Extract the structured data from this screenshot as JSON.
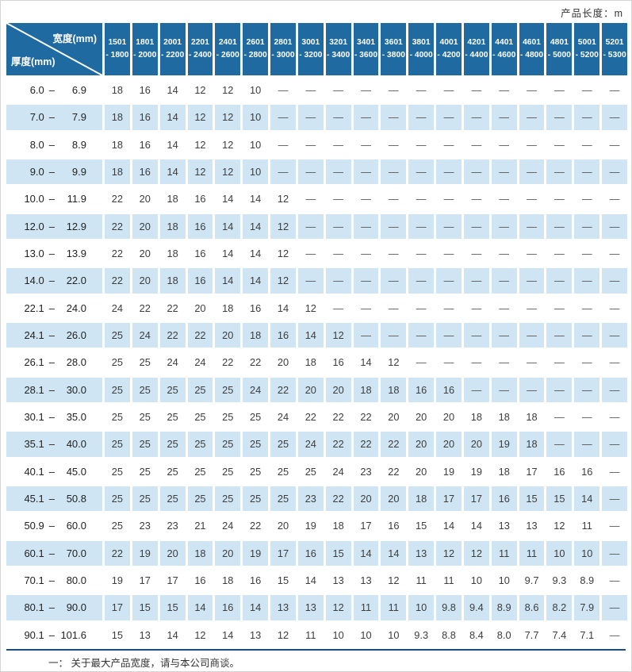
{
  "page": {
    "top_right_note": "产品长度：m",
    "footer_note": "一： 关于最大产品宽度，请与本公司商谈。"
  },
  "colors": {
    "header_blue": "#1e6aa1",
    "stripe_blue": "#cfe5f4",
    "rule_navy": "#1f4e79"
  },
  "table": {
    "corner": {
      "top_label": "宽度(mm)",
      "bottom_label": "厚度(mm)"
    },
    "columns": [
      [
        "1501",
        "- 1800"
      ],
      [
        "1801",
        "- 2000"
      ],
      [
        "2001",
        "- 2200"
      ],
      [
        "2201",
        "- 2400"
      ],
      [
        "2401",
        "- 2600"
      ],
      [
        "2601",
        "- 2800"
      ],
      [
        "2801",
        "- 3000"
      ],
      [
        "3001",
        "- 3200"
      ],
      [
        "3201",
        "- 3400"
      ],
      [
        "3401",
        "- 3600"
      ],
      [
        "3601",
        "- 3800"
      ],
      [
        "3801",
        "- 4000"
      ],
      [
        "4001",
        "- 4200"
      ],
      [
        "4201",
        "- 4400"
      ],
      [
        "4401",
        "- 4600"
      ],
      [
        "4601",
        "- 4800"
      ],
      [
        "4801",
        "- 5000"
      ],
      [
        "5001",
        "- 5200"
      ],
      [
        "5201",
        "- 5300"
      ]
    ],
    "rows": [
      {
        "from": "6.0",
        "to": "6.9",
        "values": [
          "18",
          "16",
          "14",
          "12",
          "12",
          "10",
          "—",
          "—",
          "—",
          "—",
          "—",
          "—",
          "—",
          "—",
          "—",
          "—",
          "—",
          "—",
          "—"
        ]
      },
      {
        "from": "7.0",
        "to": "7.9",
        "values": [
          "18",
          "16",
          "14",
          "12",
          "12",
          "10",
          "—",
          "—",
          "—",
          "—",
          "—",
          "—",
          "—",
          "—",
          "—",
          "—",
          "—",
          "—",
          "—"
        ]
      },
      {
        "from": "8.0",
        "to": "8.9",
        "values": [
          "18",
          "16",
          "14",
          "12",
          "12",
          "10",
          "—",
          "—",
          "—",
          "—",
          "—",
          "—",
          "—",
          "—",
          "—",
          "—",
          "—",
          "—",
          "—"
        ]
      },
      {
        "from": "9.0",
        "to": "9.9",
        "values": [
          "18",
          "16",
          "14",
          "12",
          "12",
          "10",
          "—",
          "—",
          "—",
          "—",
          "—",
          "—",
          "—",
          "—",
          "—",
          "—",
          "—",
          "—",
          "—"
        ]
      },
      {
        "from": "10.0",
        "to": "11.9",
        "values": [
          "22",
          "20",
          "18",
          "16",
          "14",
          "14",
          "12",
          "—",
          "—",
          "—",
          "—",
          "—",
          "—",
          "—",
          "—",
          "—",
          "—",
          "—",
          "—"
        ]
      },
      {
        "from": "12.0",
        "to": "12.9",
        "values": [
          "22",
          "20",
          "18",
          "16",
          "14",
          "14",
          "12",
          "—",
          "—",
          "—",
          "—",
          "—",
          "—",
          "—",
          "—",
          "—",
          "—",
          "—",
          "—"
        ]
      },
      {
        "from": "13.0",
        "to": "13.9",
        "values": [
          "22",
          "20",
          "18",
          "16",
          "14",
          "14",
          "12",
          "—",
          "—",
          "—",
          "—",
          "—",
          "—",
          "—",
          "—",
          "—",
          "—",
          "—",
          "—"
        ]
      },
      {
        "from": "14.0",
        "to": "22.0",
        "values": [
          "22",
          "20",
          "18",
          "16",
          "14",
          "14",
          "12",
          "—",
          "—",
          "—",
          "—",
          "—",
          "—",
          "—",
          "—",
          "—",
          "—",
          "—",
          "—"
        ]
      },
      {
        "from": "22.1",
        "to": "24.0",
        "values": [
          "24",
          "22",
          "22",
          "20",
          "18",
          "16",
          "14",
          "12",
          "—",
          "—",
          "—",
          "—",
          "—",
          "—",
          "—",
          "—",
          "—",
          "—",
          "—"
        ]
      },
      {
        "from": "24.1",
        "to": "26.0",
        "values": [
          "25",
          "24",
          "22",
          "22",
          "20",
          "18",
          "16",
          "14",
          "12",
          "—",
          "—",
          "—",
          "—",
          "—",
          "—",
          "—",
          "—",
          "—",
          "—"
        ]
      },
      {
        "from": "26.1",
        "to": "28.0",
        "values": [
          "25",
          "25",
          "24",
          "24",
          "22",
          "22",
          "20",
          "18",
          "16",
          "14",
          "12",
          "—",
          "—",
          "—",
          "—",
          "—",
          "—",
          "—",
          "—"
        ]
      },
      {
        "from": "28.1",
        "to": "30.0",
        "values": [
          "25",
          "25",
          "25",
          "25",
          "25",
          "24",
          "22",
          "20",
          "20",
          "18",
          "18",
          "16",
          "16",
          "—",
          "—",
          "—",
          "—",
          "—",
          "—"
        ]
      },
      {
        "from": "30.1",
        "to": "35.0",
        "values": [
          "25",
          "25",
          "25",
          "25",
          "25",
          "25",
          "24",
          "22",
          "22",
          "22",
          "20",
          "20",
          "20",
          "18",
          "18",
          "18",
          "—",
          "—",
          "—"
        ]
      },
      {
        "from": "35.1",
        "to": "40.0",
        "values": [
          "25",
          "25",
          "25",
          "25",
          "25",
          "25",
          "25",
          "24",
          "22",
          "22",
          "22",
          "20",
          "20",
          "20",
          "19",
          "18",
          "—",
          "—",
          "—"
        ]
      },
      {
        "from": "40.1",
        "to": "45.0",
        "values": [
          "25",
          "25",
          "25",
          "25",
          "25",
          "25",
          "25",
          "25",
          "24",
          "23",
          "22",
          "20",
          "19",
          "19",
          "18",
          "17",
          "16",
          "16",
          "—"
        ]
      },
      {
        "from": "45.1",
        "to": "50.8",
        "values": [
          "25",
          "25",
          "25",
          "25",
          "25",
          "25",
          "25",
          "23",
          "22",
          "20",
          "20",
          "18",
          "17",
          "17",
          "16",
          "15",
          "15",
          "14",
          "—"
        ]
      },
      {
        "from": "50.9",
        "to": "60.0",
        "values": [
          "25",
          "23",
          "23",
          "21",
          "24",
          "22",
          "20",
          "19",
          "18",
          "17",
          "16",
          "15",
          "14",
          "14",
          "13",
          "13",
          "12",
          "11",
          "—"
        ]
      },
      {
        "from": "60.1",
        "to": "70.0",
        "values": [
          "22",
          "19",
          "20",
          "18",
          "20",
          "19",
          "17",
          "16",
          "15",
          "14",
          "14",
          "13",
          "12",
          "12",
          "11",
          "11",
          "10",
          "10",
          "—"
        ]
      },
      {
        "from": "70.1",
        "to": "80.0",
        "values": [
          "19",
          "17",
          "17",
          "16",
          "18",
          "16",
          "15",
          "14",
          "13",
          "13",
          "12",
          "11",
          "11",
          "10",
          "10",
          "9.7",
          "9.3",
          "8.9",
          "—"
        ]
      },
      {
        "from": "80.1",
        "to": "90.0",
        "values": [
          "17",
          "15",
          "15",
          "14",
          "16",
          "14",
          "13",
          "13",
          "12",
          "11",
          "11",
          "10",
          "9.8",
          "9.4",
          "8.9",
          "8.6",
          "8.2",
          "7.9",
          "—"
        ]
      },
      {
        "from": "90.1",
        "to": "101.6",
        "values": [
          "15",
          "13",
          "14",
          "12",
          "14",
          "13",
          "12",
          "11",
          "10",
          "10",
          "10",
          "9.3",
          "8.8",
          "8.4",
          "8.0",
          "7.7",
          "7.4",
          "7.1",
          "—"
        ]
      }
    ]
  }
}
